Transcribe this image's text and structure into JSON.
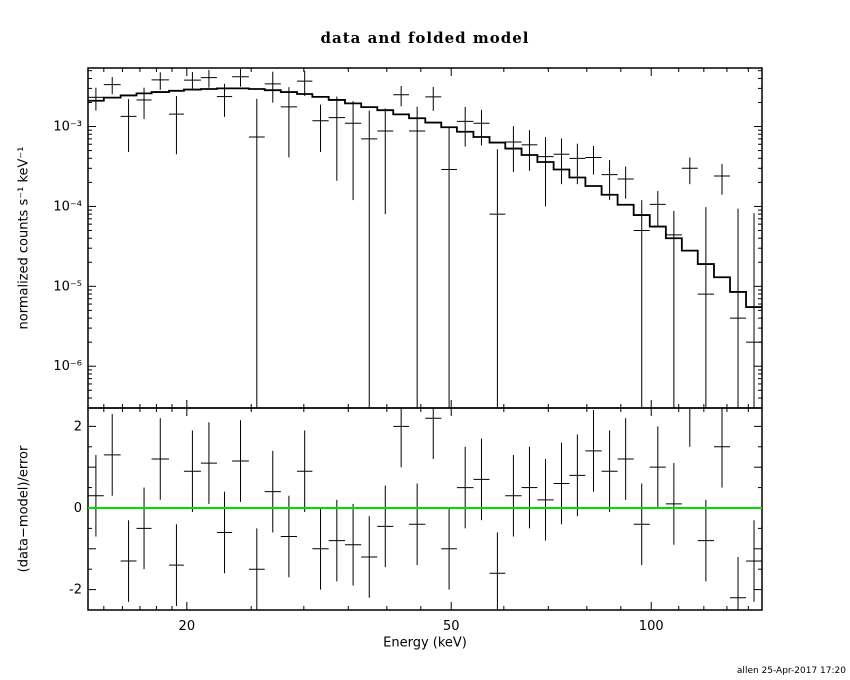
{
  "title": "data and folded model",
  "footer": "allen 25-Apr-2017 17:20",
  "top_panel": {
    "ylabel": "normalized counts s⁻¹ keV⁻¹",
    "yscale": "log",
    "ylim": [
      3e-07,
      0.0054
    ],
    "ytick_labels": [
      {
        "v": 0.001,
        "label": "10⁻³"
      },
      {
        "v": 0.0001,
        "label": "10⁻⁴"
      },
      {
        "v": 1e-05,
        "label": "10⁻⁵"
      },
      {
        "v": 1e-06,
        "label": "10⁻⁶"
      }
    ]
  },
  "bottom_panel": {
    "ylabel": "(data−model)/error",
    "ylim": [
      -2.5,
      2.45
    ],
    "yticks_major": [
      -2,
      -1,
      0,
      1,
      2
    ],
    "ytick_labels": [
      {
        "v": 2,
        "label": "2"
      },
      {
        "v": 0,
        "label": "0"
      },
      {
        "v": -2,
        "label": "-2"
      }
    ],
    "zero_line_color": "#00dd00"
  },
  "x_axis": {
    "label": "Energy (keV)",
    "scale": "log",
    "lim": [
      14.2,
      146.8
    ],
    "major_ticks": [
      {
        "v": 20,
        "label": "20"
      },
      {
        "v": 50,
        "label": "50"
      },
      {
        "v": 100,
        "label": "100"
      }
    ],
    "minor_ticks": [
      15,
      16,
      17,
      18,
      19,
      25,
      30,
      35,
      40,
      45,
      60,
      70,
      80,
      90,
      110,
      120,
      130,
      140
    ]
  },
  "chart_data": {
    "type": "scatter",
    "title": "data and folded model",
    "xlabel": "Energy (keV)",
    "xscale": "log",
    "xlim": [
      14.2,
      146.8
    ],
    "panels": [
      {
        "name": "spectrum",
        "ylabel": "normalized counts s⁻¹ keV⁻¹",
        "yscale": "log",
        "ylim": [
          3e-07,
          0.0054
        ],
        "series": [
          "data with error bars",
          "folded model (stepped line)"
        ]
      },
      {
        "name": "residuals",
        "ylabel": "(data−model)/error",
        "yscale": "linear",
        "ylim": [
          -2.5,
          2.45
        ],
        "zero_line": true,
        "residual_error": 1
      }
    ],
    "bins": [
      {
        "elo": 14.2,
        "ehi": 15.0,
        "value": 0.00232,
        "err": 0.00074,
        "model": 0.0021,
        "resid": 0.3
      },
      {
        "elo": 15.0,
        "ehi": 15.9,
        "value": 0.00335,
        "err": 0.00081,
        "model": 0.0023,
        "resid": 1.3
      },
      {
        "elo": 15.9,
        "ehi": 16.8,
        "value": 0.00134,
        "err": 0.00086,
        "model": 0.00245,
        "resid": -1.3
      },
      {
        "elo": 16.8,
        "ehi": 17.7,
        "value": 0.00215,
        "err": 0.00091,
        "model": 0.0026,
        "resid": -0.5
      },
      {
        "elo": 17.7,
        "ehi": 18.8,
        "value": 0.00383,
        "err": 0.00095,
        "model": 0.0027,
        "resid": 1.2
      },
      {
        "elo": 18.8,
        "ehi": 19.8,
        "value": 0.00143,
        "err": 0.00098,
        "model": 0.0028,
        "resid": -1.4
      },
      {
        "elo": 19.8,
        "ehi": 21.0,
        "value": 0.00381,
        "err": 0.001,
        "model": 0.0029,
        "resid": 0.9
      },
      {
        "elo": 21.0,
        "ehi": 22.2,
        "value": 0.00409,
        "err": 0.00103,
        "model": 0.00295,
        "resid": 1.1
      },
      {
        "elo": 22.2,
        "ehi": 23.4,
        "value": 0.00237,
        "err": 0.00105,
        "model": 0.003,
        "resid": -0.6
      },
      {
        "elo": 23.4,
        "ehi": 24.8,
        "value": 0.0042,
        "err": 0.00105,
        "model": 0.003,
        "resid": 1.15
      },
      {
        "elo": 24.8,
        "ehi": 26.2,
        "value": 0.00074,
        "err": 0.00148,
        "model": 0.00295,
        "resid": -1.5
      },
      {
        "elo": 26.2,
        "ehi": 27.7,
        "value": 0.00342,
        "err": 0.00143,
        "model": 0.00285,
        "resid": 0.4
      },
      {
        "elo": 27.7,
        "ehi": 29.3,
        "value": 0.00176,
        "err": 0.00135,
        "model": 0.0027,
        "resid": -0.7
      },
      {
        "elo": 29.3,
        "ehi": 30.9,
        "value": 0.0037,
        "err": 0.00128,
        "model": 0.00255,
        "resid": 0.9
      },
      {
        "elo": 30.9,
        "ehi": 32.7,
        "value": 0.00118,
        "err": 0.0007,
        "model": 0.00235,
        "resid": -1.0
      },
      {
        "elo": 32.7,
        "ehi": 34.6,
        "value": 0.00129,
        "err": 0.00108,
        "model": 0.00215,
        "resid": -0.8
      },
      {
        "elo": 34.6,
        "ehi": 36.6,
        "value": 0.0011,
        "err": 0.00098,
        "model": 0.00195,
        "resid": -0.9
      },
      {
        "elo": 36.6,
        "ehi": 38.7,
        "value": 0.0007,
        "err": 0.00088,
        "model": 0.00175,
        "resid": -1.2
      },
      {
        "elo": 38.7,
        "ehi": 40.9,
        "value": 0.00088,
        "err": 0.0008,
        "model": 0.0016,
        "resid": -0.45
      },
      {
        "elo": 40.9,
        "ehi": 43.2,
        "value": 0.0025,
        "err": 0.00071,
        "model": 0.00142,
        "resid": 2.0
      },
      {
        "elo": 43.2,
        "ehi": 45.7,
        "value": 0.00088,
        "err": 0.00089,
        "model": 0.00127,
        "resid": -0.4
      },
      {
        "elo": 45.7,
        "ehi": 48.3,
        "value": 0.00235,
        "err": 0.00078,
        "model": 0.00112,
        "resid": 2.2
      },
      {
        "elo": 48.3,
        "ehi": 51.0,
        "value": 0.00029,
        "err": 0.00069,
        "model": 0.00098,
        "resid": -1.0
      },
      {
        "elo": 51.0,
        "ehi": 54.0,
        "value": 0.00116,
        "err": 0.0006,
        "model": 0.00086,
        "resid": 0.5
      },
      {
        "elo": 54.0,
        "ehi": 57.1,
        "value": 0.0011,
        "err": 0.00052,
        "model": 0.00074,
        "resid": 0.7
      },
      {
        "elo": 57.1,
        "ehi": 60.3,
        "value": 8e-05,
        "err": 0.00044,
        "model": 0.00063,
        "resid": -1.6
      },
      {
        "elo": 60.3,
        "ehi": 63.8,
        "value": 0.00064,
        "err": 0.00037,
        "model": 0.00053,
        "resid": 0.3
      },
      {
        "elo": 63.8,
        "ehi": 67.4,
        "value": 0.00059,
        "err": 0.00031,
        "model": 0.00044,
        "resid": 0.5
      },
      {
        "elo": 67.4,
        "ehi": 71.3,
        "value": 0.00042,
        "err": 0.00032,
        "model": 0.00036,
        "resid": 0.2
      },
      {
        "elo": 71.3,
        "ehi": 75.3,
        "value": 0.00045,
        "err": 0.00026,
        "model": 0.00029,
        "resid": 0.6
      },
      {
        "elo": 75.3,
        "ehi": 79.6,
        "value": 0.0004,
        "err": 0.00021,
        "model": 0.00023,
        "resid": 0.8
      },
      {
        "elo": 79.6,
        "ehi": 84.2,
        "value": 0.00041,
        "err": 0.00016,
        "model": 0.00018,
        "resid": 1.4
      },
      {
        "elo": 84.2,
        "ehi": 89.0,
        "value": 0.00025,
        "err": 0.00013,
        "model": 0.00014,
        "resid": 0.9
      },
      {
        "elo": 89.0,
        "ehi": 94.1,
        "value": 0.00022,
        "err": 9.5e-05,
        "model": 0.000105,
        "resid": 1.2
      },
      {
        "elo": 94.1,
        "ehi": 99.5,
        "value": 5e-05,
        "err": 7e-05,
        "model": 7.8e-05,
        "resid": -0.4
      },
      {
        "elo": 99.5,
        "ehi": 105.2,
        "value": 0.000106,
        "err": 5e-05,
        "model": 5.6e-05,
        "resid": 1.0
      },
      {
        "elo": 105.2,
        "ehi": 111.2,
        "value": 4.4e-05,
        "err": 4.4e-05,
        "model": 4e-05,
        "resid": 0.1
      },
      {
        "elo": 111.2,
        "ehi": 117.5,
        "value": 0.0003,
        "err": 0.00011,
        "model": 2.8e-05,
        "resid": 2.5
      },
      {
        "elo": 117.5,
        "ehi": 124.3,
        "value": 8e-06,
        "err": 9e-05,
        "model": 1.9e-05,
        "resid": -0.8
      },
      {
        "elo": 124.3,
        "ehi": 131.4,
        "value": 0.00024,
        "err": 0.0001,
        "model": 1.3e-05,
        "resid": 1.5
      },
      {
        "elo": 131.4,
        "ehi": 138.9,
        "value": 4e-06,
        "err": 9e-05,
        "model": 8.5e-06,
        "resid": -2.2
      },
      {
        "elo": 138.9,
        "ehi": 146.8,
        "value": 2e-06,
        "err": 8e-05,
        "model": 5.5e-06,
        "resid": -1.3
      }
    ]
  }
}
